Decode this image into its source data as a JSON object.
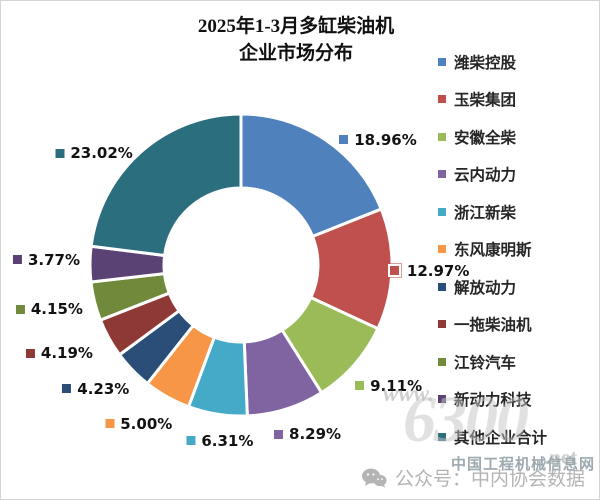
{
  "title": {
    "line1": "2025年1-3月多缸柴油机",
    "line2": "企业市场分布"
  },
  "chart_data": {
    "type": "pie",
    "subtype": "donut",
    "hole_ratio": 0.51,
    "start_angle_deg": 0,
    "direction": "clockwise",
    "title": "2025年1-3月多缸柴油机企业市场分布",
    "legend_position": "right",
    "categories": [
      "潍柴控股",
      "玉柴集团",
      "安徽全柴",
      "云内动力",
      "浙江新柴",
      "东风康明斯",
      "解放动力",
      "一拖柴油机",
      "江铃汽车",
      "新动力科技",
      "其他企业合计"
    ],
    "values": [
      18.96,
      12.97,
      9.11,
      8.29,
      6.31,
      5.0,
      4.23,
      4.19,
      4.15,
      3.77,
      23.02
    ],
    "series": [
      {
        "name": "潍柴控股",
        "value": 18.96,
        "label": "18.96%",
        "color": "#4F81BD"
      },
      {
        "name": "玉柴集团",
        "value": 12.97,
        "label": "12.97%",
        "color": "#C0504D",
        "label_marker_style": "hollow"
      },
      {
        "name": "安徽全柴",
        "value": 9.11,
        "label": "9.11%",
        "color": "#9BBB59"
      },
      {
        "name": "云内动力",
        "value": 8.29,
        "label": "8.29%",
        "color": "#8064A2"
      },
      {
        "name": "浙江新柴",
        "value": 6.31,
        "label": "6.31%",
        "color": "#45A9C8"
      },
      {
        "name": "东风康明斯",
        "value": 5.0,
        "label": "5.00%",
        "color": "#F79646"
      },
      {
        "name": "解放动力",
        "value": 4.23,
        "label": "4.23%",
        "color": "#2A4E77"
      },
      {
        "name": "一拖柴油机",
        "value": 4.19,
        "label": "4.19%",
        "color": "#8E3935"
      },
      {
        "name": "江铃汽车",
        "value": 4.15,
        "label": "4.15%",
        "color": "#71893B"
      },
      {
        "name": "新动力科技",
        "value": 3.77,
        "label": "3.77%",
        "color": "#5A4374"
      },
      {
        "name": "其他企业合计",
        "value": 23.02,
        "label": "23.02%",
        "color": "#2B6F7F"
      }
    ]
  },
  "watermark": {
    "www": "www.",
    "logo": "6300",
    "net": ".net",
    "site_name": "中国工程机械信息网",
    "wechat_label": "公众号：中内协会数据"
  }
}
